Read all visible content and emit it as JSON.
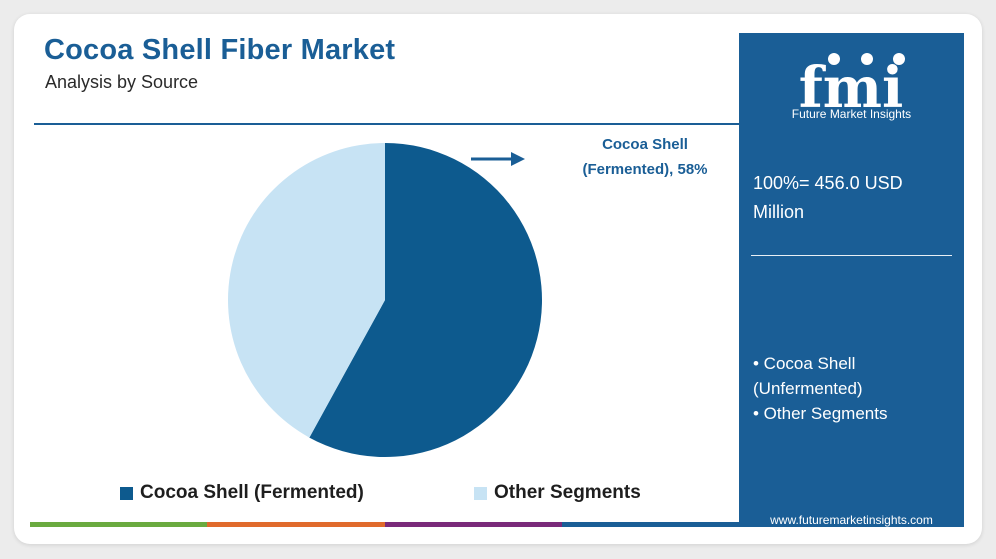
{
  "header": {
    "title": "Cocoa Shell Fiber Market",
    "subtitle": "Analysis by Source"
  },
  "callout": {
    "line1": "Cocoa Shell",
    "line2": "(Fermented), 58%"
  },
  "panel": {
    "logo_letters": "fmi",
    "logo_caption": "Future Market Insights",
    "total_line1": "100%= 456.0 USD",
    "total_line2": "Million",
    "segments": [
      "• Cocoa Shell",
      "(Unfermented)",
      "• Other Segments"
    ],
    "url": "www.futuremarketinsights.com"
  },
  "colors": {
    "primary": "#1a5e96",
    "fermented": "#0d5a8e",
    "other": "#c7e3f4",
    "bar": [
      "#6aaa3f",
      "#e06a2c",
      "#7a2a7a",
      "#1a5e96"
    ]
  },
  "chart_data": {
    "type": "pie",
    "title": "Cocoa Shell Fiber Market",
    "subtitle": "Analysis by Source",
    "total": "100%= 456.0 USD Million",
    "slices": [
      {
        "name": "Cocoa Shell (Fermented)",
        "value": 58,
        "color": "#0d5a8e"
      },
      {
        "name": "Other Segments",
        "value": 42,
        "color": "#c7e3f4"
      }
    ],
    "legend_position": "bottom"
  }
}
